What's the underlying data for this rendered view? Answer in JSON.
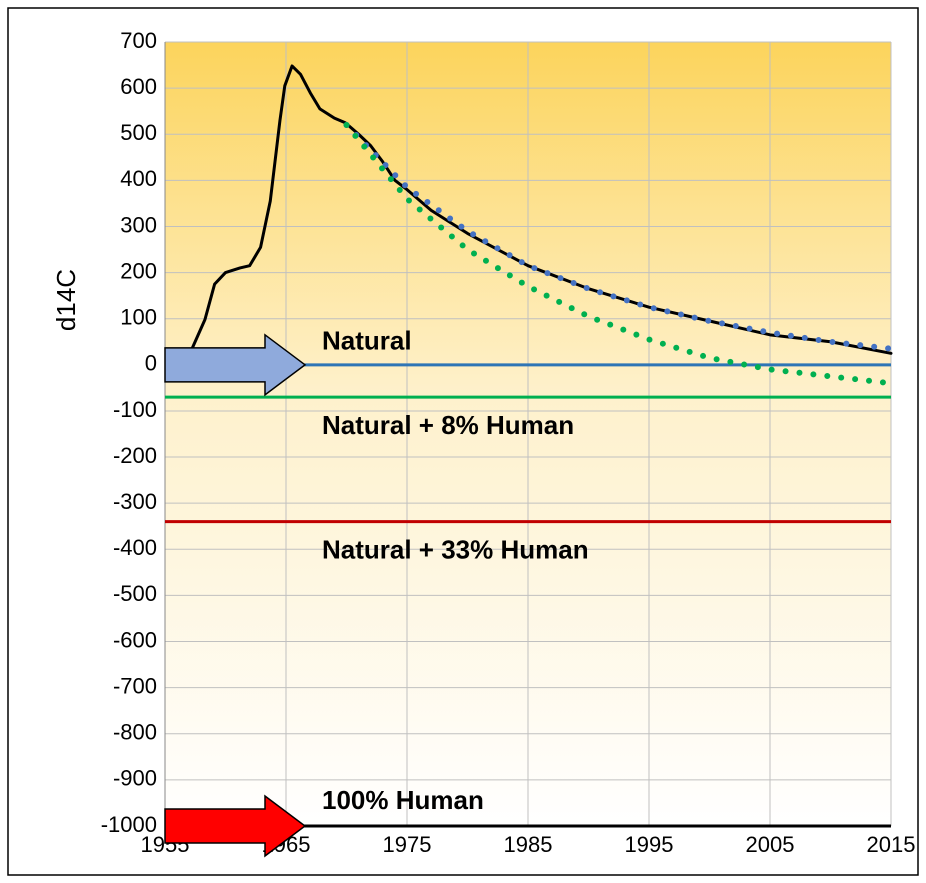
{
  "chart_data": {
    "type": "line",
    "ylabel": "d14C",
    "xlim": [
      1955,
      2015
    ],
    "xticks": [
      1955,
      1965,
      1975,
      1985,
      1995,
      2005,
      2015
    ],
    "ylim": [
      -1000,
      700
    ],
    "yticks": [
      -1000,
      -900,
      -800,
      -700,
      -600,
      -500,
      -400,
      -300,
      -200,
      -100,
      0,
      100,
      200,
      300,
      400,
      500,
      600,
      700
    ],
    "grid": true,
    "series": [
      {
        "color": "#000000",
        "style": "solid",
        "x": [
          1957.2,
          1958.3,
          1959.1,
          1960,
          1961.2,
          1962,
          1962.9,
          1963.7,
          1964.5,
          1964.9,
          1965.5,
          1966.2,
          1967,
          1967.8,
          1969,
          1969.9,
          1971,
          1972,
          1973,
          1974,
          1975,
          1977,
          1980,
          1985,
          1990,
          1995,
          2000,
          2005,
          2010,
          2015
        ],
        "values": [
          33,
          98,
          175,
          200,
          210,
          215,
          255,
          355,
          530,
          605,
          648,
          630,
          590,
          555,
          535,
          525,
          500,
          475,
          440,
          400,
          380,
          335,
          285,
          215,
          165,
          125,
          95,
          65,
          50,
          25
        ]
      },
      {
        "color": "#4472c4",
        "style": "dotted",
        "x": [
          1970,
          1975,
          1980,
          1985,
          1990,
          1995,
          2000,
          2005,
          2010,
          2015
        ],
        "values": [
          520,
          385,
          290,
          215,
          165,
          125,
          95,
          70,
          50,
          35
        ]
      },
      {
        "color": "#00b050",
        "style": "dotted",
        "x": [
          1970,
          1975,
          1980,
          1985,
          1990,
          1995,
          2000,
          2005,
          2010,
          2015
        ],
        "values": [
          520,
          360,
          250,
          170,
          105,
          55,
          15,
          -10,
          -25,
          -40
        ]
      }
    ],
    "reference_lines": [
      {
        "label": "Natural",
        "value": 0,
        "color": "#2e75b6",
        "label_color": "#2e75b6"
      },
      {
        "label": "Natural + 8% Human",
        "value": -70,
        "color": "#00b050",
        "label_color": "#00b050"
      },
      {
        "label": "Natural + 33% Human",
        "value": -340,
        "color": "#c00000",
        "label_color": "#c00000"
      },
      {
        "label": "100% Human",
        "value": -1000,
        "color": "#000000",
        "label_color": "#c00000"
      }
    ]
  }
}
